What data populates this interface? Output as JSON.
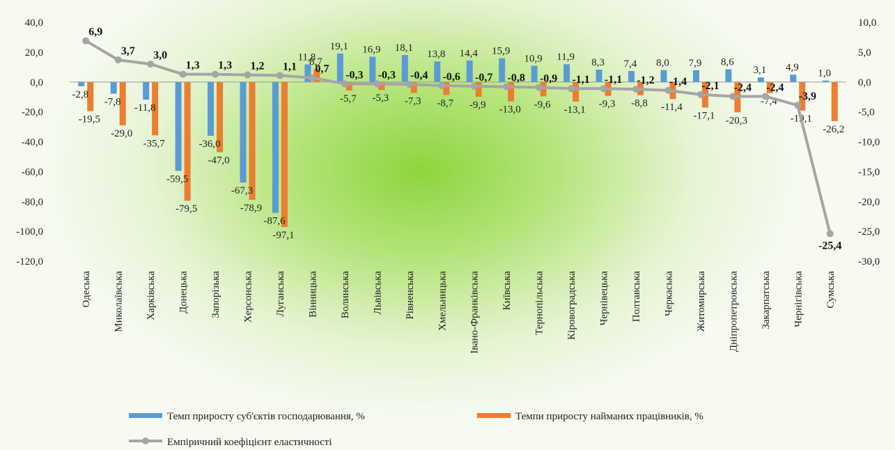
{
  "chart_data": {
    "type": "bar",
    "categories": [
      "Одеська",
      "Миколаївська",
      "Харківська",
      "Донецька",
      "Запорізька",
      "Херсонська",
      "Луганська",
      "Вінницька",
      "Волинська",
      "Львівська",
      "Рівненська",
      "Хмельницька",
      "Івано-Франківська",
      "Київська",
      "Тернопільська",
      "Кіровоградська",
      "Чернівецька",
      "Полтавська",
      "Черкаська",
      "Житомирська",
      "Дніпропетровська",
      "Закарпатська",
      "Чернігівська",
      "Сумська"
    ],
    "series": [
      {
        "name": "Темп приросту суб'єктів господарювання, %",
        "color": "#5b9bd5",
        "axis": "left",
        "values": [
          -2.8,
          -7.8,
          -11.8,
          -59.5,
          -36.0,
          -67.3,
          -87.6,
          11.8,
          19.1,
          16.9,
          18.1,
          13.8,
          14.4,
          15.9,
          10.9,
          11.9,
          8.3,
          7.4,
          8.0,
          7.9,
          8.6,
          3.1,
          4.9,
          1.0
        ],
        "labels": [
          "-2,8",
          "-7,8",
          "-11,8",
          "-59,5",
          "-36,0",
          "-67,3",
          "-87,6",
          "11,8",
          "19,1",
          "16,9",
          "18,1",
          "13,8",
          "14,4",
          "15,9",
          "10,9",
          "11,9",
          "8,3",
          "7,4",
          "8,0",
          "7,9",
          "8,6",
          "3,1",
          "4,9",
          "1,0"
        ]
      },
      {
        "name": "Темпи приросту найманих працівників, %",
        "color": "#ed7d31",
        "axis": "left",
        "values": [
          -19.5,
          -29.0,
          -35.7,
          -79.5,
          -47.0,
          -78.9,
          -97.1,
          8.7,
          -5.7,
          -5.3,
          -7.3,
          -8.7,
          -9.9,
          -13.0,
          -9.6,
          -13.1,
          -9.3,
          -8.8,
          -11.4,
          -17.1,
          -20.3,
          -7.4,
          -19.1,
          -26.2
        ],
        "labels": [
          "-19,5",
          "-29,0",
          "-35,7",
          "-79,5",
          "-47,0",
          "-78,9",
          "-97,1",
          "8,7",
          "-5,7",
          "-5,3",
          "-7,3",
          "-8,7",
          "-9,9",
          "-13,0",
          "-9,6",
          "-13,1",
          "-9,3",
          "-8,8",
          "-11,4",
          "-17,1",
          "-20,3",
          "-7,4",
          "-19,1",
          "-26,2"
        ]
      },
      {
        "name": "Емпіричний коефіцієнт еластичності",
        "color": "#a5a5a5",
        "axis": "right",
        "type": "line",
        "values": [
          6.9,
          3.7,
          3.0,
          1.3,
          1.3,
          1.2,
          1.1,
          0.7,
          -0.3,
          -0.3,
          -0.4,
          -0.6,
          -0.7,
          -0.8,
          -0.9,
          -1.1,
          -1.1,
          -1.2,
          -1.4,
          -2.1,
          -2.4,
          -2.4,
          -3.9,
          -25.4
        ],
        "labels": [
          "6,9",
          "3,7",
          "3,0",
          "1,3",
          "1,3",
          "1,2",
          "1,1",
          "0,7",
          "-0,3",
          "-0,3",
          "-0,4",
          "-0,6",
          "-0,7",
          "-0,8",
          "-0,9",
          "-1,1",
          "-1,1",
          "-1,2",
          "-1,4",
          "-2,1",
          "-2,4",
          "-2,4",
          "-3,9",
          "-25,4"
        ]
      }
    ],
    "y_left": {
      "min": -120,
      "max": 40,
      "ticks": [
        "40,0",
        "20,0",
        "0,0",
        "-20,0",
        "-40,0",
        "-60,0",
        "-80,0",
        "-100,0",
        "-120,0"
      ]
    },
    "y_right": {
      "min": -30,
      "max": 10,
      "ticks": [
        "10,0",
        "5,0",
        "0,0",
        "-5,0",
        "-10,0",
        "-15,0",
        "-20,0",
        "-25,0",
        "-30,0"
      ]
    },
    "grid": false,
    "legend_position": "bottom"
  }
}
